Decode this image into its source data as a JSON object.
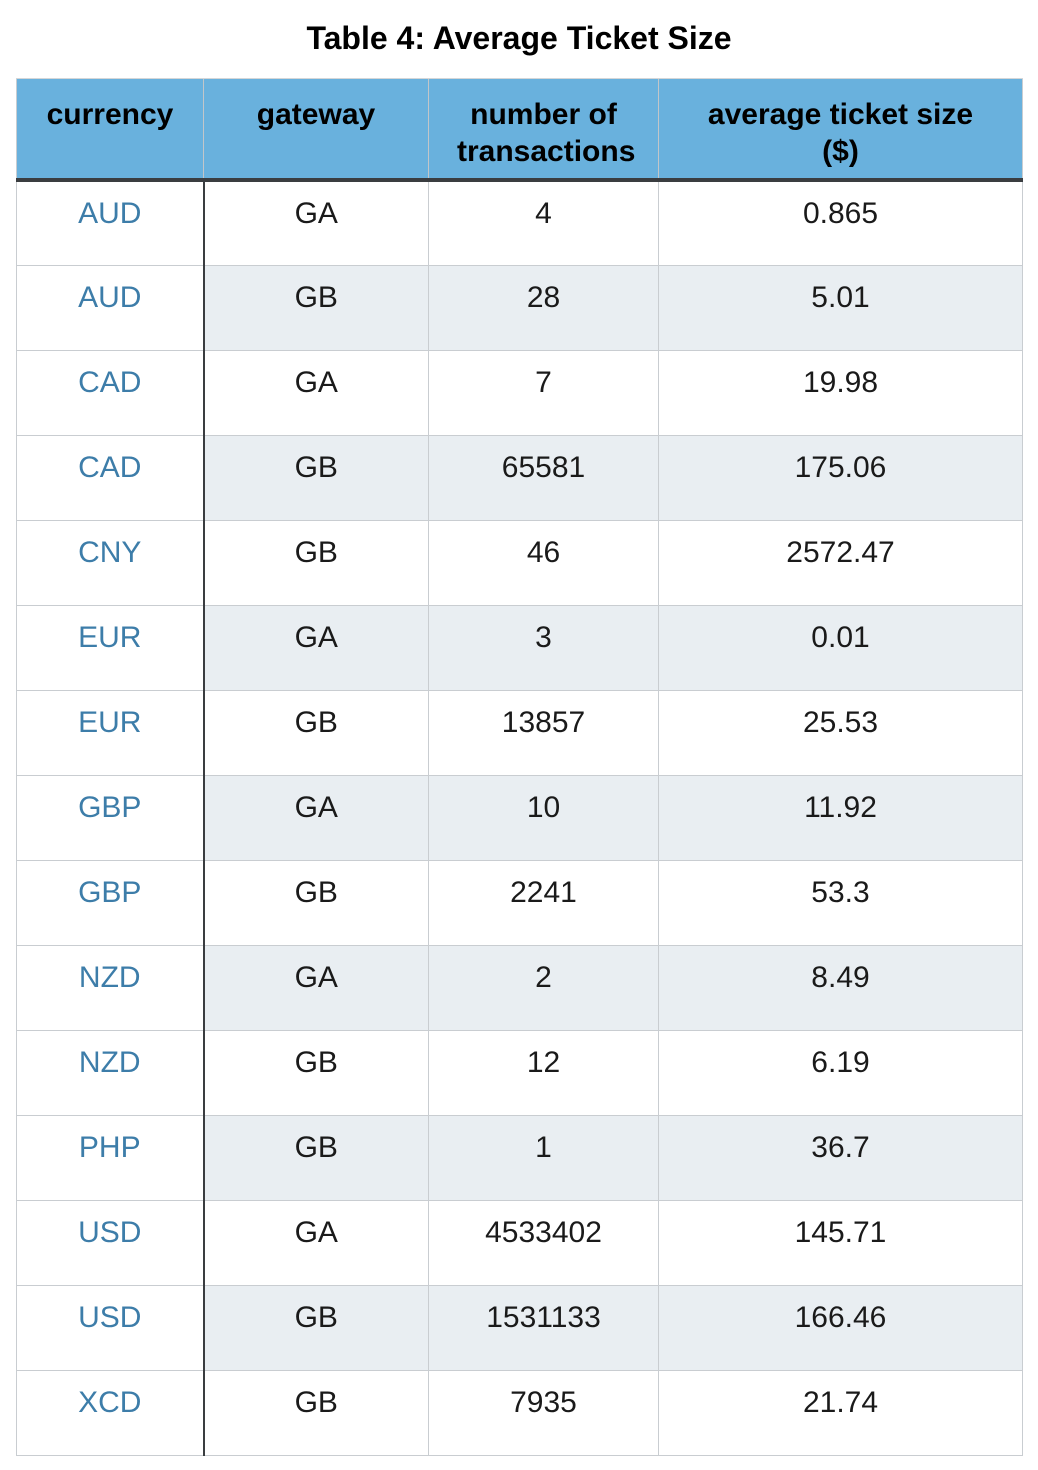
{
  "title": "Table 4: Average Ticket Size",
  "table": {
    "columns": [
      "currency",
      "gateway",
      "number of transactions",
      "average ticket size ($)"
    ],
    "rows": [
      {
        "currency": "AUD",
        "gateway": "GA",
        "transactions": "4",
        "avg_ticket": "0.865"
      },
      {
        "currency": "AUD",
        "gateway": "GB",
        "transactions": "28",
        "avg_ticket": "5.01"
      },
      {
        "currency": "CAD",
        "gateway": "GA",
        "transactions": "7",
        "avg_ticket": "19.98"
      },
      {
        "currency": "CAD",
        "gateway": "GB",
        "transactions": "65581",
        "avg_ticket": "175.06"
      },
      {
        "currency": "CNY",
        "gateway": "GB",
        "transactions": "46",
        "avg_ticket": "2572.47"
      },
      {
        "currency": "EUR",
        "gateway": "GA",
        "transactions": "3",
        "avg_ticket": "0.01"
      },
      {
        "currency": "EUR",
        "gateway": "GB",
        "transactions": "13857",
        "avg_ticket": "25.53"
      },
      {
        "currency": "GBP",
        "gateway": "GA",
        "transactions": "10",
        "avg_ticket": "11.92"
      },
      {
        "currency": "GBP",
        "gateway": "GB",
        "transactions": "2241",
        "avg_ticket": "53.3"
      },
      {
        "currency": "NZD",
        "gateway": "GA",
        "transactions": "2",
        "avg_ticket": "8.49"
      },
      {
        "currency": "NZD",
        "gateway": "GB",
        "transactions": "12",
        "avg_ticket": "6.19"
      },
      {
        "currency": "PHP",
        "gateway": "GB",
        "transactions": "1",
        "avg_ticket": "36.7"
      },
      {
        "currency": "USD",
        "gateway": "GA",
        "transactions": "4533402",
        "avg_ticket": "145.71"
      },
      {
        "currency": "USD",
        "gateway": "GB",
        "transactions": "1531133",
        "avg_ticket": "166.46"
      },
      {
        "currency": "XCD",
        "gateway": "GB",
        "transactions": "7935",
        "avg_ticket": "21.74"
      }
    ]
  },
  "colors": {
    "header_bg": "#69B1DD",
    "stripe_bg": "#E9EEF2",
    "currency_link": "#3D7DA9",
    "dark_border": "#3A3D40",
    "light_border": "#C9CDD1",
    "body_text": "#1A1A1A"
  },
  "chart_data": {
    "type": "table",
    "title": "Table 4: Average Ticket Size",
    "columns": [
      "currency",
      "gateway",
      "number of transactions",
      "average ticket size ($)"
    ],
    "rows": [
      [
        "AUD",
        "GA",
        4,
        0.865
      ],
      [
        "AUD",
        "GB",
        28,
        5.01
      ],
      [
        "CAD",
        "GA",
        7,
        19.98
      ],
      [
        "CAD",
        "GB",
        65581,
        175.06
      ],
      [
        "CNY",
        "GB",
        46,
        2572.47
      ],
      [
        "EUR",
        "GA",
        3,
        0.01
      ],
      [
        "EUR",
        "GB",
        13857,
        25.53
      ],
      [
        "GBP",
        "GA",
        10,
        11.92
      ],
      [
        "GBP",
        "GB",
        2241,
        53.3
      ],
      [
        "NZD",
        "GA",
        2,
        8.49
      ],
      [
        "NZD",
        "GB",
        12,
        6.19
      ],
      [
        "PHP",
        "GB",
        1,
        36.7
      ],
      [
        "USD",
        "GA",
        4533402,
        145.71
      ],
      [
        "USD",
        "GB",
        1531133,
        166.46
      ],
      [
        "XCD",
        "GB",
        7935,
        21.74
      ]
    ],
    "layout_hints": {
      "striped_rows": "even rows shaded on columns 2-4 only",
      "first_column_style": "link-blue text, white background, dark right rule"
    }
  }
}
